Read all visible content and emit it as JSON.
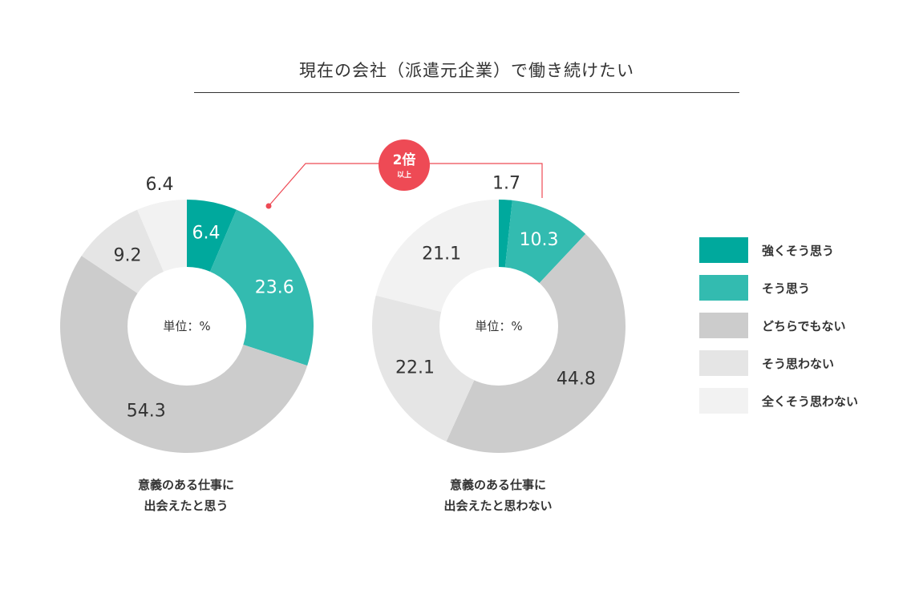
{
  "title": "現在の会社（派遣元企業）で働き続けたい",
  "callout": {
    "main": "2倍",
    "sub": "以上",
    "color": "#ee4a55"
  },
  "center_label": "単位：%",
  "chart_data": [
    {
      "type": "pie",
      "donut": true,
      "unit": "%",
      "caption_lines": [
        "意義のある仕事に",
        "出会えたと思う"
      ],
      "categories": [
        "強くそう思う",
        "そう思う",
        "どちらでもない",
        "そう思わない",
        "全くそう思わない"
      ],
      "values": [
        6.4,
        23.6,
        54.3,
        9.2,
        6.4
      ]
    },
    {
      "type": "pie",
      "donut": true,
      "unit": "%",
      "caption_lines": [
        "意義のある仕事に",
        "出会えたと思わない"
      ],
      "categories": [
        "強くそう思う",
        "そう思う",
        "どちらでもない",
        "そう思わない",
        "全くそう思わない"
      ],
      "values": [
        1.7,
        10.3,
        44.8,
        22.1,
        21.1
      ]
    }
  ],
  "legend": {
    "items": [
      {
        "label": "強くそう思う",
        "color": "#00a99d"
      },
      {
        "label": "そう思う",
        "color": "#33bbb0"
      },
      {
        "label": "どちらでもない",
        "color": "#cccccc"
      },
      {
        "label": "そう思わない",
        "color": "#e5e5e5"
      },
      {
        "label": "全くそう思わない",
        "color": "#f2f2f2"
      }
    ]
  }
}
